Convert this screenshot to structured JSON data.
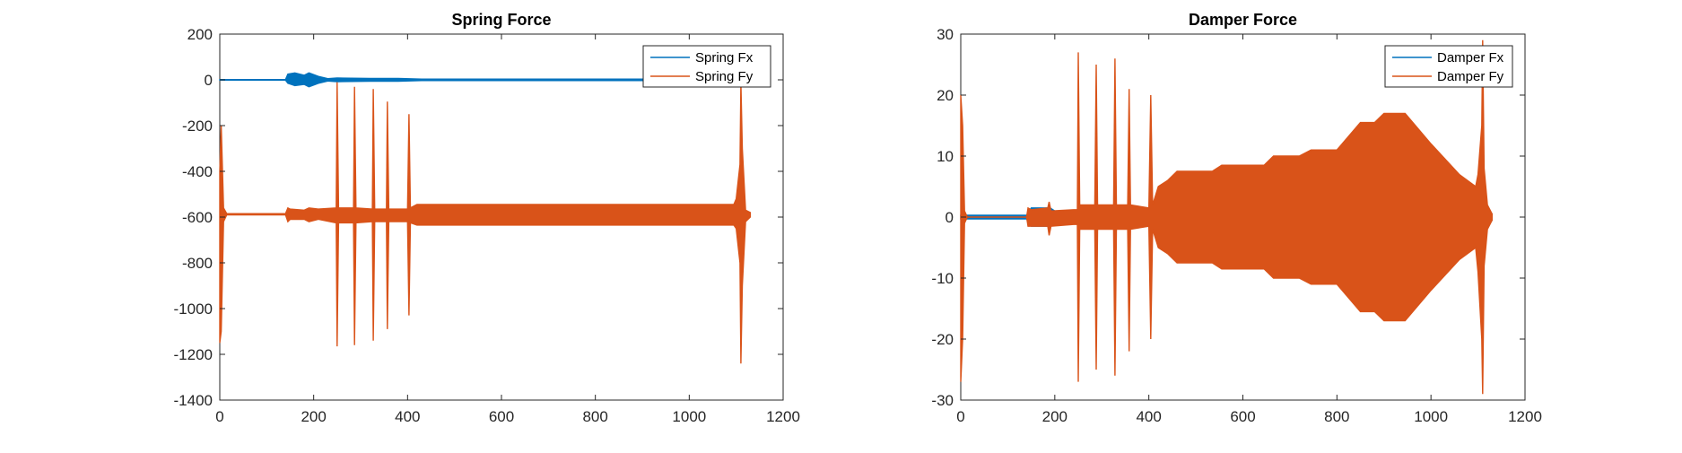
{
  "chart_data": [
    {
      "type": "line",
      "title": "Spring Force",
      "xlabel": "",
      "ylabel": "",
      "xlim": [
        0,
        1200
      ],
      "ylim": [
        -1400,
        200
      ],
      "xticks": [
        0,
        200,
        400,
        600,
        800,
        1000,
        1200
      ],
      "yticks": [
        200,
        0,
        -200,
        -400,
        -600,
        -800,
        -1000,
        -1200,
        -1400
      ],
      "grid": false,
      "legend_location": "top-right",
      "legend": [
        "Spring Fx",
        "Spring Fy"
      ],
      "series": [
        {
          "name": "Spring Fx",
          "color": "#0072BD",
          "envelope": [
            [
              0,
              1,
              -1
            ],
            [
              140,
              1,
              -1
            ],
            [
              145,
              25,
              -15
            ],
            [
              160,
              30,
              -25
            ],
            [
              180,
              20,
              -20
            ],
            [
              190,
              30,
              -30
            ],
            [
              210,
              15,
              -15
            ],
            [
              230,
              5,
              -5
            ],
            [
              250,
              8,
              -8
            ],
            [
              320,
              6,
              -6
            ],
            [
              380,
              6,
              -6
            ],
            [
              430,
              3,
              -3
            ],
            [
              800,
              3,
              -3
            ],
            [
              1000,
              3,
              -3
            ],
            [
              1100,
              5,
              -5
            ],
            [
              1110,
              10,
              -30
            ],
            [
              1130,
              10,
              -30
            ]
          ]
        },
        {
          "name": "Spring Fy",
          "color": "#D95319",
          "envelope": [
            [
              0,
              -400,
              -1150
            ],
            [
              3,
              -200,
              -1100
            ],
            [
              8,
              -560,
              -620
            ],
            [
              15,
              -585,
              -590
            ],
            [
              140,
              -585,
              -590
            ],
            [
              145,
              -560,
              -620
            ],
            [
              150,
              -565,
              -610
            ],
            [
              180,
              -570,
              -610
            ],
            [
              190,
              -560,
              -620
            ],
            [
              210,
              -565,
              -610
            ],
            [
              248,
              -560,
              -625
            ],
            [
              250,
              -10,
              -1165
            ],
            [
              253,
              -560,
              -625
            ],
            [
              285,
              -560,
              -625
            ],
            [
              287,
              -30,
              -1160
            ],
            [
              290,
              -560,
              -625
            ],
            [
              325,
              -565,
              -620
            ],
            [
              327,
              -40,
              -1140
            ],
            [
              330,
              -565,
              -620
            ],
            [
              355,
              -565,
              -620
            ],
            [
              357,
              -95,
              -1090
            ],
            [
              360,
              -565,
              -620
            ],
            [
              400,
              -565,
              -620
            ],
            [
              403,
              -150,
              -1030
            ],
            [
              406,
              -560,
              -625
            ],
            [
              420,
              -545,
              -635
            ],
            [
              1095,
              -545,
              -635
            ],
            [
              1100,
              -520,
              -650
            ],
            [
              1108,
              -370,
              -800
            ],
            [
              1110,
              -10,
              -1240
            ],
            [
              1113,
              -300,
              -900
            ],
            [
              1120,
              -570,
              -620
            ],
            [
              1130,
              -580,
              -600
            ]
          ]
        }
      ]
    },
    {
      "type": "line",
      "title": "Damper Force",
      "xlabel": "",
      "ylabel": "",
      "xlim": [
        0,
        1200
      ],
      "ylim": [
        -30,
        30
      ],
      "xticks": [
        0,
        200,
        400,
        600,
        800,
        1000,
        1200
      ],
      "yticks": [
        30,
        20,
        10,
        0,
        -10,
        -20,
        -30
      ],
      "grid": false,
      "legend_location": "top-right",
      "legend": [
        "Damper Fx",
        "Damper Fy"
      ],
      "series": [
        {
          "name": "Damper Fx",
          "color": "#0072BD",
          "envelope": [
            [
              0,
              0.3,
              -0.3
            ],
            [
              140,
              0.3,
              -0.3
            ],
            [
              150,
              1.5,
              -1.5
            ],
            [
              190,
              1.5,
              -1.5
            ],
            [
              210,
              0.5,
              -0.5
            ],
            [
              1130,
              0.5,
              -0.5
            ]
          ]
        },
        {
          "name": "Damper Fy",
          "color": "#D95319",
          "envelope": [
            [
              0,
              20,
              -27
            ],
            [
              4,
              15,
              -20
            ],
            [
              8,
              1,
              -1
            ],
            [
              14,
              0,
              0
            ],
            [
              140,
              0,
              0
            ],
            [
              143,
              1.5,
              -1.5
            ],
            [
              150,
              1.2,
              -1.5
            ],
            [
              185,
              1.5,
              -1.5
            ],
            [
              188,
              2.5,
              -3
            ],
            [
              192,
              1,
              -1.5
            ],
            [
              240,
              1.2,
              -1.2
            ],
            [
              248,
              1.2,
              -1.2
            ],
            [
              250,
              27,
              -27
            ],
            [
              253,
              2,
              -2
            ],
            [
              285,
              2,
              -2
            ],
            [
              288,
              25,
              -25
            ],
            [
              291,
              2,
              -2
            ],
            [
              325,
              2,
              -2
            ],
            [
              328,
              26,
              -26
            ],
            [
              331,
              2,
              -2
            ],
            [
              355,
              2,
              -2
            ],
            [
              358,
              21,
              -22
            ],
            [
              361,
              2,
              -2
            ],
            [
              400,
              1.5,
              -1.5
            ],
            [
              404,
              20,
              -20
            ],
            [
              408,
              2,
              -2
            ],
            [
              420,
              5,
              -5
            ],
            [
              440,
              6,
              -6
            ],
            [
              460,
              7.5,
              -7.5
            ],
            [
              535,
              7.5,
              -7.5
            ],
            [
              555,
              8.5,
              -8.5
            ],
            [
              645,
              8.5,
              -8.5
            ],
            [
              665,
              10,
              -10
            ],
            [
              720,
              10,
              -10
            ],
            [
              745,
              11,
              -11
            ],
            [
              800,
              11,
              -11
            ],
            [
              850,
              15.5,
              -15.5
            ],
            [
              880,
              15.5,
              -15.5
            ],
            [
              900,
              17,
              -17
            ],
            [
              945,
              17,
              -17
            ],
            [
              1000,
              12,
              -12
            ],
            [
              1060,
              7,
              -7
            ],
            [
              1095,
              5,
              -5
            ],
            [
              1100,
              7,
              -9
            ],
            [
              1108,
              15,
              -20
            ],
            [
              1110,
              29,
              -29
            ],
            [
              1113,
              8,
              -8
            ],
            [
              1120,
              2,
              -2
            ],
            [
              1130,
              0.5,
              -0.5
            ]
          ]
        }
      ]
    }
  ]
}
